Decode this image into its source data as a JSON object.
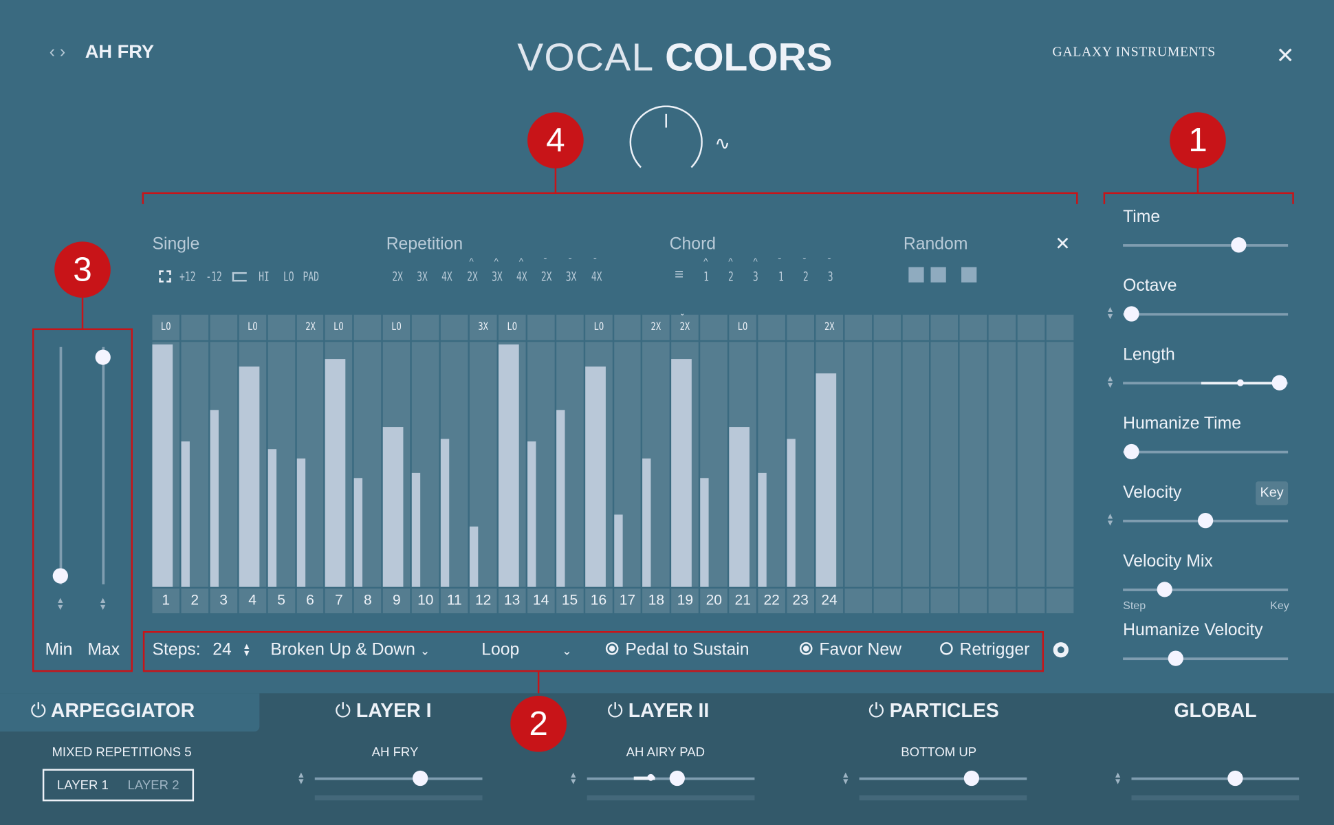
{
  "header": {
    "preset": "AH FRY",
    "title_light": "VOCAL",
    "title_bold": "COLORS",
    "brand": "GALAXY INSTRUMENTS"
  },
  "callouts": [
    "1",
    "2",
    "3",
    "4"
  ],
  "modes": {
    "single_label": "Single",
    "single_items": [
      "+12",
      "-12",
      "HI",
      "LO",
      "PAD"
    ],
    "repetition_label": "Repetition",
    "repetition_items": [
      "2X",
      "3X",
      "4X",
      "2X",
      "3X",
      "4X",
      "2X",
      "3X",
      "4X"
    ],
    "chord_label": "Chord",
    "chord_items": [
      "1",
      "2",
      "3",
      "1",
      "2",
      "3"
    ],
    "random_label": "Random"
  },
  "steps": {
    "labels": [
      "LO",
      "",
      "",
      "LO",
      "",
      "2X",
      "LO",
      "",
      "LO",
      "",
      "",
      "3X",
      "LO",
      "",
      "",
      "LO",
      "",
      "2X",
      "2X",
      "",
      "LO",
      "",
      "",
      "2X"
    ],
    "velocities": [
      1.0,
      0.6,
      0.73,
      0.91,
      0.57,
      0.53,
      0.94,
      0.45,
      0.66,
      0.47,
      0.61,
      0.25,
      1.0,
      0.6,
      0.73,
      0.91,
      0.3,
      0.53,
      0.94,
      0.45,
      0.66,
      0.47,
      0.61,
      0.88
    ],
    "total_columns": 32
  },
  "range": {
    "min_label": "Min",
    "max_label": "Max",
    "min": 0.04,
    "max": 0.96
  },
  "controls": {
    "steps_label": "Steps:",
    "steps_value": "24",
    "pattern": "Broken Up & Down",
    "loop": "Loop",
    "pedal": "Pedal to Sustain",
    "favor": "Favor New",
    "retrigger": "Retrigger",
    "pedal_on": true,
    "favor_on": true,
    "retrigger_on": false
  },
  "side": {
    "time": "Time",
    "octave": "Octave",
    "length": "Length",
    "humanize_time": "Humanize Time",
    "velocity": "Velocity",
    "key_button": "Key",
    "velocity_mix": "Velocity Mix",
    "step": "Step",
    "key": "Key",
    "humanize_velocity": "Humanize Velocity",
    "values": {
      "time": 0.7,
      "octave": 0.05,
      "length": 0.95,
      "humanize_time": 0.05,
      "velocity": 0.5,
      "velocity_mix": 0.25,
      "humanize_velocity": 0.32
    }
  },
  "tabs": {
    "arp": "ARPEGGIATOR",
    "layer1": "LAYER I",
    "layer2": "LAYER II",
    "particles": "PARTICLES",
    "global": "GLOBAL"
  },
  "bottom": {
    "arp_preset": "MIXED REPETITIONS 5",
    "layer_a": "LAYER 1",
    "layer_b": "LAYER 2",
    "layer1_preset": "AH FRY",
    "layer2_preset": "AH AIRY PAD",
    "particles_preset": "BOTTOM UP",
    "values": {
      "layer1": 0.63,
      "layer2": 0.54,
      "particles": 0.67,
      "global": 0.62
    }
  }
}
